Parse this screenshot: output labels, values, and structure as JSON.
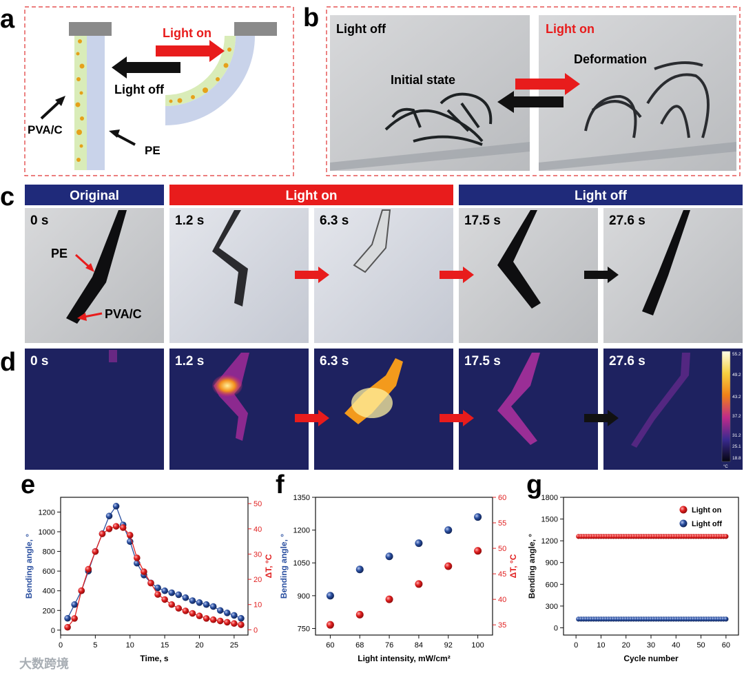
{
  "panel_letters": {
    "a": "a",
    "b": "b",
    "c": "c",
    "d": "d",
    "e": "e",
    "f": "f",
    "g": "g"
  },
  "panel_a": {
    "light_on": "Light on",
    "light_off": "Light off",
    "pva_c": "PVA/C",
    "pe": "PE"
  },
  "panel_b": {
    "light_off": "Light off",
    "light_on": "Light on",
    "initial_state": "Initial state",
    "deformation": "Deformation"
  },
  "panel_c": {
    "header_original": "Original",
    "header_light_on": "Light on",
    "header_light_off": "Light off",
    "times": [
      "0 s",
      "1.2 s",
      "6.3 s",
      "17.5 s",
      "27.6 s"
    ],
    "pe": "PE",
    "pva_c": "PVA/C"
  },
  "panel_d": {
    "times": [
      "0 s",
      "1.2 s",
      "6.3 s",
      "17.5 s",
      "27.6 s"
    ],
    "colorbar_ticks": [
      "55.2",
      "49.2",
      "43.2",
      "37.2",
      "31.2",
      "25.1",
      "18.8"
    ],
    "colorbar_unit": "°C"
  },
  "watermark": "大数跨境",
  "chart_data": [
    {
      "id": "e",
      "type": "line",
      "xlabel": "Time, s",
      "ylabel": "Bending angle, °",
      "y2label": "ΔT, °C",
      "xlim": [
        0,
        27
      ],
      "ylim": [
        -50,
        1350
      ],
      "y2lim": [
        -2.083,
        52.5
      ],
      "xticks": [
        0,
        5,
        10,
        15,
        20,
        25
      ],
      "yticks": [
        0,
        200,
        400,
        600,
        800,
        1000,
        1200
      ],
      "y2ticks": [
        0,
        10,
        20,
        30,
        40,
        50
      ],
      "series": [
        {
          "axis": "left",
          "color": "#2a4fa0",
          "x": [
            1,
            2,
            3,
            4,
            5,
            6,
            7,
            8,
            9,
            10,
            11,
            12,
            13,
            14,
            15,
            16,
            17,
            18,
            19,
            20,
            21,
            22,
            23,
            24,
            25,
            26
          ],
          "y": [
            120,
            260,
            400,
            600,
            800,
            980,
            1160,
            1260,
            1070,
            900,
            680,
            560,
            480,
            430,
            400,
            380,
            360,
            330,
            300,
            280,
            260,
            240,
            200,
            175,
            150,
            120
          ]
        },
        {
          "axis": "right",
          "color": "#e02020",
          "x": [
            1,
            2,
            3,
            4,
            5,
            6,
            7,
            8,
            9,
            10,
            11,
            12,
            13,
            14,
            15,
            16,
            17,
            18,
            19,
            20,
            21,
            22,
            23,
            24,
            25,
            26
          ],
          "y": [
            1,
            4.5,
            15.5,
            24,
            31,
            38,
            40,
            41,
            40.5,
            37.5,
            28.5,
            23,
            18.5,
            14,
            12,
            10,
            8.5,
            7.5,
            6.5,
            5.5,
            4.5,
            4,
            3.5,
            3,
            2.5,
            2
          ]
        }
      ]
    },
    {
      "id": "f",
      "type": "scatter",
      "xlabel": "Light intensity, mW/cm²",
      "ylabel": "Bending angle, °",
      "y2label": "ΔT, °C",
      "xlim": [
        56,
        104
      ],
      "ylim": [
        720,
        1350
      ],
      "y2lim": [
        33,
        60
      ],
      "xticks": [
        60,
        68,
        76,
        84,
        92,
        100
      ],
      "yticks": [
        750,
        900,
        1050,
        1200,
        1350
      ],
      "y2ticks": [
        35,
        40,
        45,
        50,
        55,
        60
      ],
      "series": [
        {
          "axis": "left",
          "color": "#2a4fa0",
          "x": [
            60,
            68,
            76,
            84,
            92,
            100
          ],
          "y": [
            900,
            1020,
            1080,
            1140,
            1200,
            1260
          ]
        },
        {
          "axis": "right",
          "color": "#e02020",
          "x": [
            60,
            68,
            76,
            84,
            92,
            100
          ],
          "y": [
            35,
            37,
            40,
            43,
            46.5,
            49.5
          ]
        }
      ]
    },
    {
      "id": "g",
      "type": "scatter",
      "xlabel": "Cycle number",
      "ylabel": "Bending angle, °",
      "xlim": [
        -5,
        65
      ],
      "ylim": [
        -100,
        1800
      ],
      "xticks": [
        0,
        10,
        20,
        30,
        40,
        50,
        60
      ],
      "yticks": [
        0,
        300,
        600,
        900,
        1200,
        1500,
        1800
      ],
      "legend_position": "top-right",
      "series": [
        {
          "name": "Light on",
          "color": "#e02020",
          "cycles": [
            1,
            60
          ],
          "value": 1260
        },
        {
          "name": "Light off",
          "color": "#2a4fa0",
          "cycles": [
            1,
            60
          ],
          "value": 120
        }
      ]
    }
  ]
}
